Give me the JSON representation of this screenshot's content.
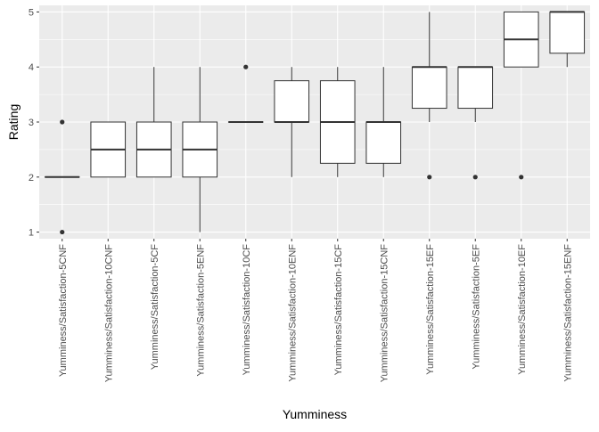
{
  "chart_data": {
    "type": "box",
    "title": "",
    "xlabel": "Yumminess",
    "ylabel": "Rating",
    "ylim": [
      0.88,
      5.12
    ],
    "yticks": [
      1,
      2,
      3,
      4,
      5
    ],
    "grid": true,
    "legend": "none",
    "colors": {
      "panel": "#ebebeb",
      "grid_major": "#ffffff",
      "box_fill": "#ffffff",
      "line": "#333333",
      "text": "#4d4d4d",
      "title_text": "#000000"
    },
    "categories": [
      "Yumminess/Satisfaction-5CNF",
      "Yumminess/Satisfaction-10CNF",
      "Yumminess/Satisfaction-5CF",
      "Yumminess/Satisfaction-5ENF",
      "Yumminess/Satisfaction-10CF",
      "Yumminess/Satisfaction-10ENF",
      "Yumminess/Satisfaction-15CF",
      "Yumminess/Satisfaction-15CNF",
      "Yumminess/Satisfaction-15EF",
      "Yumminess/Satisfaction-5EF",
      "Yumminess/Satisfaction-10EF",
      "Yumminess/Satisfaction-15ENF"
    ],
    "boxes": [
      {
        "min": 2,
        "q1": 2,
        "median": 2,
        "q3": 2,
        "max": 2,
        "outliers": [
          1,
          3
        ]
      },
      {
        "min": 2,
        "q1": 2,
        "median": 2.5,
        "q3": 3,
        "max": 3,
        "outliers": []
      },
      {
        "min": 2,
        "q1": 2,
        "median": 2.5,
        "q3": 3,
        "max": 4,
        "outliers": []
      },
      {
        "min": 1,
        "q1": 2,
        "median": 2.5,
        "q3": 3,
        "max": 4,
        "outliers": []
      },
      {
        "min": 3,
        "q1": 3,
        "median": 3,
        "q3": 3,
        "max": 3,
        "outliers": [
          4
        ]
      },
      {
        "min": 2,
        "q1": 3,
        "median": 3,
        "q3": 3.75,
        "max": 4,
        "outliers": []
      },
      {
        "min": 2,
        "q1": 2.25,
        "median": 3,
        "q3": 3.75,
        "max": 4,
        "outliers": []
      },
      {
        "min": 2,
        "q1": 2.25,
        "median": 3,
        "q3": 3,
        "max": 4,
        "outliers": []
      },
      {
        "min": 3,
        "q1": 3.25,
        "median": 4,
        "q3": 4,
        "max": 5,
        "outliers": [
          2
        ]
      },
      {
        "min": 3,
        "q1": 3.25,
        "median": 4,
        "q3": 4,
        "max": 4,
        "outliers": [
          2
        ]
      },
      {
        "min": 4,
        "q1": 4,
        "median": 4.5,
        "q3": 5,
        "max": 5,
        "outliers": [
          2
        ]
      },
      {
        "min": 4,
        "q1": 4.25,
        "median": 5,
        "q3": 5,
        "max": 5,
        "outliers": []
      }
    ]
  }
}
